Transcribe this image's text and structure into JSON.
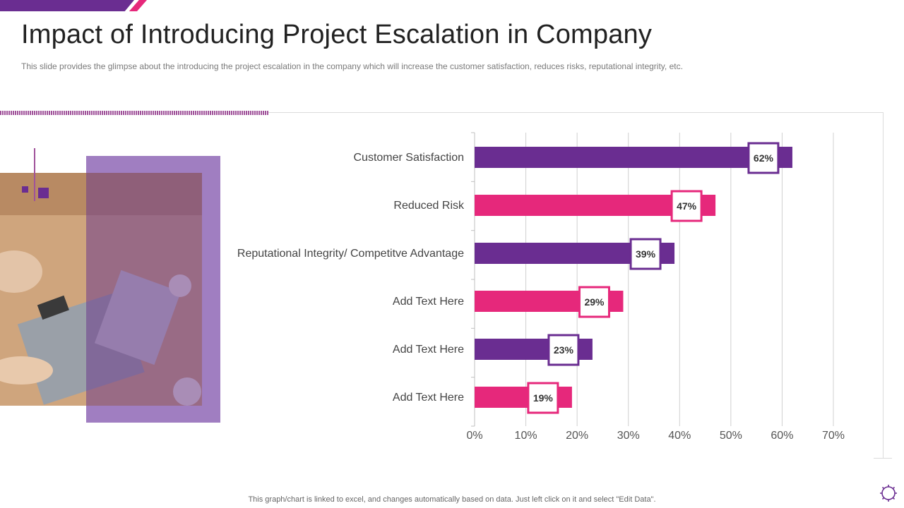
{
  "slide": {
    "title": "Impact of Introducing Project Escalation in Company",
    "subtitle": "This slide provides  the glimpse about the introducing the project escalation in the company which will increase the customer satisfaction, reduces risks, reputational integrity, etc.",
    "footer_note": "This graph/chart is linked to excel,  and changes automatically based on data. Just left click on it and select \"Edit Data\"."
  },
  "colors": {
    "purple": "#6a2d91",
    "pink": "#e6287b",
    "grid": "#d0d0d0"
  },
  "chart_data": {
    "type": "bar",
    "orientation": "horizontal",
    "categories": [
      "Customer Satisfaction",
      "Reduced Risk",
      "Reputational Integrity/ Competitve Advantage",
      "Add Text Here",
      "Add Text Here",
      "Add Text Here"
    ],
    "values": [
      62,
      47,
      39,
      29,
      23,
      19
    ],
    "value_labels": [
      "62%",
      "47%",
      "39%",
      "29%",
      "23%",
      "19%"
    ],
    "bar_colors": [
      "purple",
      "pink",
      "purple",
      "pink",
      "purple",
      "pink"
    ],
    "xlim": [
      0,
      70
    ],
    "xticks": [
      0,
      10,
      20,
      30,
      40,
      50,
      60,
      70
    ],
    "xtick_labels": [
      "0%",
      "10%",
      "20%",
      "30%",
      "40%",
      "50%",
      "60%",
      "70%"
    ],
    "grid": true,
    "legend": "none",
    "title": "",
    "xlabel": "",
    "ylabel": ""
  }
}
